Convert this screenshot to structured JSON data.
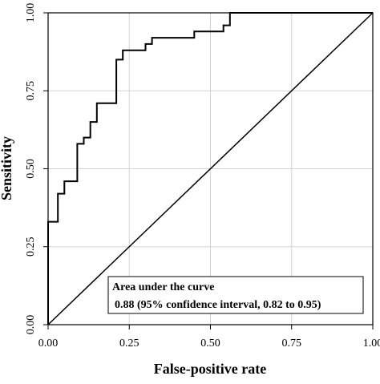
{
  "chart_data": {
    "type": "line",
    "title": "",
    "xlabel": "False-positive rate",
    "ylabel": "Sensitivity",
    "xlim": [
      0,
      1
    ],
    "ylim": [
      0,
      1
    ],
    "x_ticks": [
      0,
      0.25,
      0.5,
      0.75,
      1.0
    ],
    "x_tick_labels": [
      "0.00",
      "0.25",
      "0.50",
      "0.75",
      "1.00"
    ],
    "y_ticks": [
      0,
      0.25,
      0.5,
      0.75,
      1.0
    ],
    "y_tick_labels": [
      "0.00",
      "0.25",
      "0.50",
      "0.75",
      "1.00"
    ],
    "grid": true,
    "series": [
      {
        "values": [
          [
            0.0,
            0.0
          ],
          [
            0.0,
            0.33
          ],
          [
            0.03,
            0.33
          ],
          [
            0.03,
            0.42
          ],
          [
            0.05,
            0.42
          ],
          [
            0.05,
            0.46
          ],
          [
            0.09,
            0.46
          ],
          [
            0.09,
            0.58
          ],
          [
            0.11,
            0.58
          ],
          [
            0.11,
            0.6
          ],
          [
            0.13,
            0.6
          ],
          [
            0.13,
            0.65
          ],
          [
            0.15,
            0.65
          ],
          [
            0.15,
            0.71
          ],
          [
            0.21,
            0.71
          ],
          [
            0.21,
            0.85
          ],
          [
            0.23,
            0.85
          ],
          [
            0.23,
            0.88
          ],
          [
            0.3,
            0.88
          ],
          [
            0.3,
            0.9
          ],
          [
            0.32,
            0.9
          ],
          [
            0.32,
            0.92
          ],
          [
            0.45,
            0.92
          ],
          [
            0.45,
            0.94
          ],
          [
            0.54,
            0.94
          ],
          [
            0.54,
            0.96
          ],
          [
            0.56,
            0.96
          ],
          [
            0.56,
            1.0
          ],
          [
            1.0,
            1.0
          ]
        ]
      },
      {
        "values": [
          [
            0,
            0
          ],
          [
            1,
            1
          ]
        ]
      }
    ],
    "annotation": {
      "line1": "Area under the curve",
      "line2": "0.88 (95% confidence interval, 0.82 to 0.95)"
    }
  }
}
